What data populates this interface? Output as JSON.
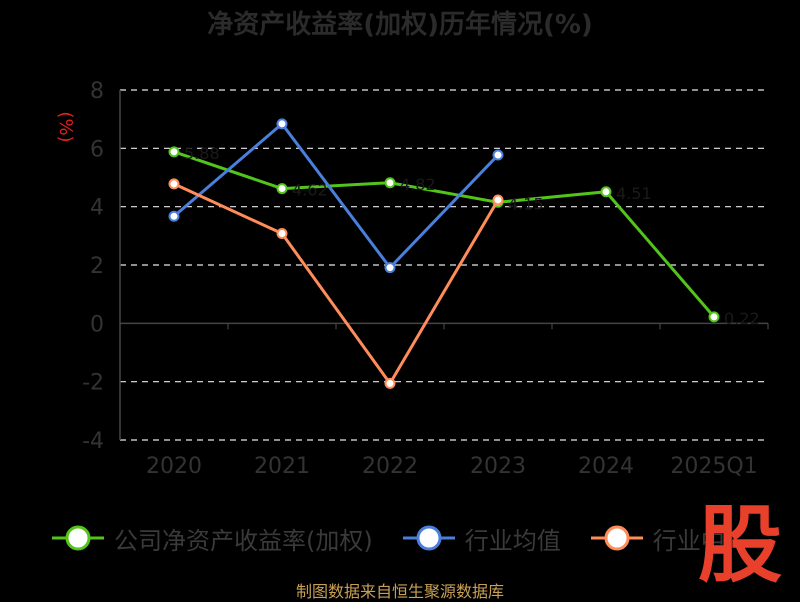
{
  "chart_data": {
    "type": "line",
    "title": "净资产收益率(加权)历年情况(%)",
    "ylabel": "(%)",
    "categories": [
      "2020",
      "2021",
      "2022",
      "2023",
      "2024",
      "2025Q1"
    ],
    "ylim": [
      -4,
      8
    ],
    "yticks": [
      "8",
      "6",
      "4",
      "2",
      "0",
      "-2",
      "-4"
    ],
    "grid": true,
    "legend_position": "bottom",
    "series": [
      {
        "name": "公司净资产收益率(加权)",
        "color": "#52c41a",
        "values": [
          5.88,
          4.62,
          4.82,
          4.15,
          4.51,
          0.22
        ],
        "labels": [
          "5.88",
          "4.62",
          "4.82",
          "4.15",
          "4.51",
          "0.22"
        ]
      },
      {
        "name": "行业均值",
        "color": "#4a7fdc",
        "values": [
          3.67,
          6.84,
          1.91,
          5.77,
          null,
          null
        ]
      },
      {
        "name": "行业中位数",
        "color": "#ff8c5a",
        "values": [
          4.78,
          3.08,
          -2.06,
          4.23,
          null,
          null
        ]
      }
    ]
  },
  "legend": {
    "items": [
      {
        "label": "公司净资产收益率(加权)"
      },
      {
        "label": "行业均值"
      },
      {
        "label": "行业中"
      }
    ]
  },
  "source": "制图数据来自恒生聚源数据库",
  "stamp": "股"
}
